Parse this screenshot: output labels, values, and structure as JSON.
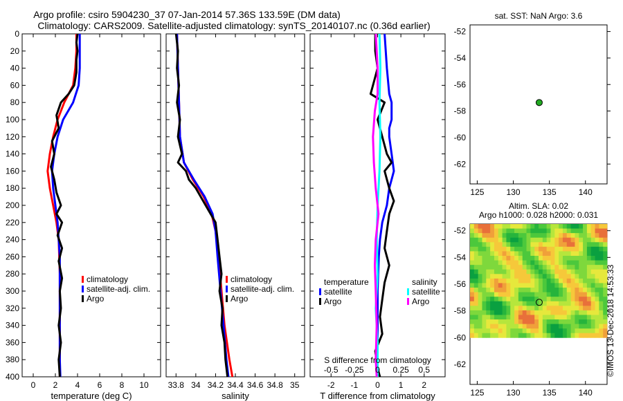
{
  "header": {
    "title_line1": "Argo profile: csiro 5904230_37 07-Jan-2014 57.36S 133.59E (DM data)",
    "title_line2": "Climatology: CARS2009. Satellite-adjusted climatology: synTS_20140107.nc (0.36d earlier)",
    "credit": "©IMOS 13-Dec-2018 14:53:33"
  },
  "colors": {
    "climatology": "#ff0000",
    "satellite": "#0000ff",
    "argo": "#000000",
    "sal_climatology": "#ff00ff",
    "sal_satellite": "#00ffff"
  },
  "chart_data": [
    {
      "id": "temperature",
      "type": "line",
      "xlabel": "temperature (deg C)",
      "ylabel": "",
      "xlim": [
        -1,
        11.5
      ],
      "ylim": [
        400,
        0
      ],
      "xticks": [
        0,
        2,
        4,
        6,
        8,
        10
      ],
      "xtick_labels": [
        "0",
        "2",
        "4",
        "6",
        "8",
        "10"
      ],
      "yticks": [
        0,
        20,
        40,
        60,
        80,
        100,
        120,
        140,
        160,
        180,
        200,
        220,
        240,
        260,
        280,
        300,
        320,
        340,
        360,
        380,
        400
      ],
      "legend": [
        "climatology",
        "satellite-adj. clim.",
        "Argo"
      ],
      "series": [
        {
          "name": "climatology",
          "color": "#ff0000",
          "points": [
            [
              3.9,
              0
            ],
            [
              3.9,
              20
            ],
            [
              3.8,
              40
            ],
            [
              3.6,
              60
            ],
            [
              2.8,
              80
            ],
            [
              2.2,
              100
            ],
            [
              1.8,
              120
            ],
            [
              1.5,
              140
            ],
            [
              1.3,
              160
            ],
            [
              1.5,
              180
            ],
            [
              1.8,
              200
            ],
            [
              2.1,
              220
            ],
            [
              2.3,
              240
            ],
            [
              2.35,
              260
            ],
            [
              2.4,
              280
            ],
            [
              2.4,
              300
            ],
            [
              2.4,
              320
            ],
            [
              2.4,
              340
            ],
            [
              2.4,
              360
            ],
            [
              2.4,
              380
            ],
            [
              2.4,
              400
            ]
          ]
        },
        {
          "name": "satellite-adj. clim.",
          "color": "#0000ff",
          "points": [
            [
              4.2,
              0
            ],
            [
              4.2,
              20
            ],
            [
              4.2,
              40
            ],
            [
              4.1,
              60
            ],
            [
              3.6,
              80
            ],
            [
              2.7,
              100
            ],
            [
              2.2,
              120
            ],
            [
              1.9,
              140
            ],
            [
              1.7,
              160
            ],
            [
              1.8,
              180
            ],
            [
              2.0,
              200
            ],
            [
              2.2,
              220
            ],
            [
              2.3,
              240
            ],
            [
              2.4,
              260
            ],
            [
              2.4,
              280
            ],
            [
              2.4,
              300
            ],
            [
              2.4,
              320
            ],
            [
              2.4,
              340
            ],
            [
              2.4,
              360
            ],
            [
              2.4,
              380
            ],
            [
              2.45,
              400
            ]
          ]
        },
        {
          "name": "Argo",
          "color": "#000000",
          "points": [
            [
              4.0,
              0
            ],
            [
              3.9,
              10
            ],
            [
              4.0,
              20
            ],
            [
              3.9,
              30
            ],
            [
              3.9,
              45
            ],
            [
              3.7,
              60
            ],
            [
              3.2,
              70
            ],
            [
              2.5,
              80
            ],
            [
              2.1,
              95
            ],
            [
              2.3,
              110
            ],
            [
              1.7,
              125
            ],
            [
              1.9,
              140
            ],
            [
              1.6,
              155
            ],
            [
              1.9,
              170
            ],
            [
              2.1,
              185
            ],
            [
              2.5,
              200
            ],
            [
              2.1,
              210
            ],
            [
              2.6,
              220
            ],
            [
              2.2,
              235
            ],
            [
              2.6,
              250
            ],
            [
              2.3,
              265
            ],
            [
              2.6,
              285
            ],
            [
              2.4,
              300
            ],
            [
              2.5,
              320
            ],
            [
              2.3,
              340
            ],
            [
              2.5,
              360
            ],
            [
              2.3,
              380
            ],
            [
              2.4,
              400
            ]
          ]
        }
      ]
    },
    {
      "id": "salinity",
      "type": "line",
      "xlabel": "salinity",
      "ylabel": "",
      "xlim": [
        33.7,
        35.1
      ],
      "ylim": [
        400,
        0
      ],
      "xticks": [
        33.8,
        34,
        34.2,
        34.4,
        34.6,
        34.8,
        35
      ],
      "xtick_labels": [
        "33.8",
        "34",
        "34.2",
        "34.4",
        "34.6",
        "34.8",
        "35"
      ],
      "yticks": [
        0,
        20,
        40,
        60,
        80,
        100,
        120,
        140,
        160,
        180,
        200,
        220,
        240,
        260,
        280,
        300,
        320,
        340,
        360,
        380,
        400
      ],
      "legend": [
        "climatology",
        "satellite-adj. clim.",
        "Argo"
      ],
      "series": [
        {
          "name": "climatology",
          "color": "#ff0000",
          "points": [
            [
              33.81,
              0
            ],
            [
              33.82,
              40
            ],
            [
              33.83,
              80
            ],
            [
              33.84,
              120
            ],
            [
              33.88,
              150
            ],
            [
              33.97,
              170
            ],
            [
              34.08,
              190
            ],
            [
              34.16,
              210
            ],
            [
              34.2,
              230
            ],
            [
              34.23,
              260
            ],
            [
              34.26,
              300
            ],
            [
              34.29,
              340
            ],
            [
              34.34,
              380
            ],
            [
              34.37,
              400
            ]
          ]
        },
        {
          "name": "satellite-adj. clim.",
          "color": "#0000ff",
          "points": [
            [
              33.81,
              0
            ],
            [
              33.82,
              40
            ],
            [
              33.83,
              80
            ],
            [
              33.84,
              120
            ],
            [
              33.88,
              150
            ],
            [
              33.98,
              170
            ],
            [
              34.09,
              190
            ],
            [
              34.17,
              210
            ],
            [
              34.2,
              230
            ],
            [
              34.22,
              260
            ],
            [
              34.25,
              300
            ],
            [
              34.28,
              340
            ],
            [
              34.31,
              380
            ],
            [
              34.33,
              400
            ]
          ]
        },
        {
          "name": "Argo",
          "color": "#000000",
          "points": [
            [
              33.8,
              0
            ],
            [
              33.82,
              20
            ],
            [
              33.81,
              40
            ],
            [
              33.83,
              60
            ],
            [
              33.81,
              80
            ],
            [
              33.84,
              100
            ],
            [
              33.82,
              120
            ],
            [
              33.86,
              140
            ],
            [
              33.82,
              150
            ],
            [
              33.9,
              160
            ],
            [
              33.93,
              170
            ],
            [
              34.0,
              180
            ],
            [
              34.1,
              200
            ],
            [
              34.2,
              220
            ],
            [
              34.22,
              240
            ],
            [
              34.24,
              260
            ],
            [
              34.26,
              280
            ],
            [
              34.24,
              300
            ],
            [
              34.27,
              320
            ],
            [
              34.26,
              340
            ],
            [
              34.29,
              360
            ],
            [
              34.3,
              380
            ],
            [
              34.32,
              400
            ]
          ]
        }
      ]
    },
    {
      "id": "differences",
      "type": "line",
      "xlabel": "T difference from climatology",
      "x2label": "S difference from climatology",
      "xlim": [
        -2.9,
        2.9
      ],
      "ylim": [
        400,
        0
      ],
      "xticks": [
        -2,
        -1,
        0,
        1,
        2
      ],
      "xtick_labels": [
        "-2",
        "-1",
        "0",
        "1",
        "2"
      ],
      "x2ticks": [
        -0.5,
        -0.25,
        0,
        0.25,
        0.5
      ],
      "x2tick_labels": [
        "-0.5",
        "-0.25",
        "0",
        "0.25",
        "0.5"
      ],
      "yticks": [
        0,
        20,
        40,
        60,
        80,
        100,
        120,
        140,
        160,
        180,
        200,
        220,
        240,
        260,
        280,
        300,
        320,
        340,
        360,
        380,
        400
      ],
      "legend_temperature_title": "temperature",
      "legend_salinity_title": "salinity",
      "legend_temperature": [
        "satellite",
        "Argo"
      ],
      "legend_salinity": [
        "satellite",
        "Argo"
      ],
      "series": [
        {
          "name": "T satellite",
          "color": "#0000ff",
          "points": [
            [
              0.3,
              0
            ],
            [
              0.4,
              40
            ],
            [
              0.5,
              70
            ],
            [
              0.6,
              80
            ],
            [
              0.6,
              100
            ],
            [
              0.5,
              110
            ],
            [
              0.5,
              120
            ],
            [
              0.6,
              140
            ],
            [
              0.7,
              160
            ],
            [
              0.6,
              170
            ],
            [
              0.5,
              180
            ],
            [
              0.4,
              200
            ],
            [
              0.2,
              220
            ],
            [
              0.1,
              240
            ],
            [
              0.05,
              260
            ],
            [
              0.0,
              300
            ],
            [
              0.0,
              340
            ],
            [
              0.0,
              380
            ],
            [
              0.0,
              400
            ]
          ]
        },
        {
          "name": "T Argo",
          "color": "#000000",
          "points": [
            [
              -0.1,
              0
            ],
            [
              -0.1,
              20
            ],
            [
              0.0,
              40
            ],
            [
              -0.2,
              60
            ],
            [
              -0.3,
              70
            ],
            [
              0.3,
              80
            ],
            [
              0.0,
              100
            ],
            [
              0.2,
              120
            ],
            [
              0.4,
              140
            ],
            [
              0.6,
              150
            ],
            [
              0.3,
              160
            ],
            [
              0.5,
              180
            ],
            [
              0.7,
              195
            ],
            [
              0.5,
              210
            ],
            [
              0.4,
              230
            ],
            [
              0.3,
              250
            ],
            [
              0.5,
              270
            ],
            [
              0.3,
              290
            ],
            [
              0.2,
              310
            ],
            [
              0.1,
              330
            ],
            [
              0.2,
              350
            ],
            [
              -0.1,
              370
            ],
            [
              0.0,
              390
            ],
            [
              0.1,
              400
            ]
          ]
        },
        {
          "name": "S satellite",
          "color": "#00ffff",
          "points": [
            [
              0.02,
              0
            ],
            [
              0.03,
              40
            ],
            [
              0.02,
              80
            ],
            [
              0.03,
              120
            ],
            [
              0.02,
              160
            ],
            [
              0.0,
              200
            ],
            [
              -0.01,
              240
            ],
            [
              0.0,
              280
            ],
            [
              -0.02,
              320
            ],
            [
              0.0,
              360
            ],
            [
              0.0,
              400
            ]
          ]
        },
        {
          "name": "S Argo",
          "color": "#ff00ff",
          "points": [
            [
              -0.02,
              0
            ],
            [
              0.0,
              40
            ],
            [
              0.0,
              70
            ],
            [
              -0.03,
              90
            ],
            [
              -0.05,
              120
            ],
            [
              -0.04,
              150
            ],
            [
              -0.02,
              180
            ],
            [
              0.01,
              210
            ],
            [
              -0.02,
              240
            ],
            [
              -0.03,
              270
            ],
            [
              -0.02,
              300
            ],
            [
              -0.01,
              340
            ],
            [
              -0.02,
              380
            ],
            [
              -0.01,
              400
            ]
          ]
        }
      ]
    },
    {
      "id": "sst_map",
      "type": "scatter",
      "title": "sat. SST: NaN Argo: 3.6",
      "xlim": [
        124,
        143
      ],
      "ylim": [
        -63.5,
        -51.5
      ],
      "xticks": [
        125,
        130,
        135,
        140
      ],
      "xtick_labels": [
        "125",
        "130",
        "135",
        "140"
      ],
      "yticks": [
        -52,
        -54,
        -56,
        -58,
        -60,
        -62
      ],
      "ytick_labels": [
        "-52",
        "-54",
        "-56",
        "-58",
        "-60",
        "-62"
      ],
      "points": [
        {
          "x": 133.59,
          "y": -57.36,
          "color": "#22aa22"
        }
      ]
    },
    {
      "id": "sla_map",
      "type": "heatmap",
      "title_line1": "Altim. SLA: 0.02",
      "title_line2": "Argo h1000: 0.028 h2000: 0.031",
      "xlim": [
        124,
        143
      ],
      "ylim": [
        -63.5,
        -51.5
      ],
      "data_extent": {
        "lat": [
          -60,
          -51.5
        ]
      },
      "xticks": [
        125,
        130,
        135,
        140
      ],
      "xtick_labels": [
        "125",
        "130",
        "135",
        "140"
      ],
      "yticks": [
        -52,
        -54,
        -56,
        -58,
        -60,
        -62
      ],
      "ytick_labels": [
        "-52",
        "-54",
        "-56",
        "-58",
        "-60",
        "-62"
      ],
      "points": [
        {
          "x": 133.59,
          "y": -57.36
        }
      ]
    }
  ]
}
